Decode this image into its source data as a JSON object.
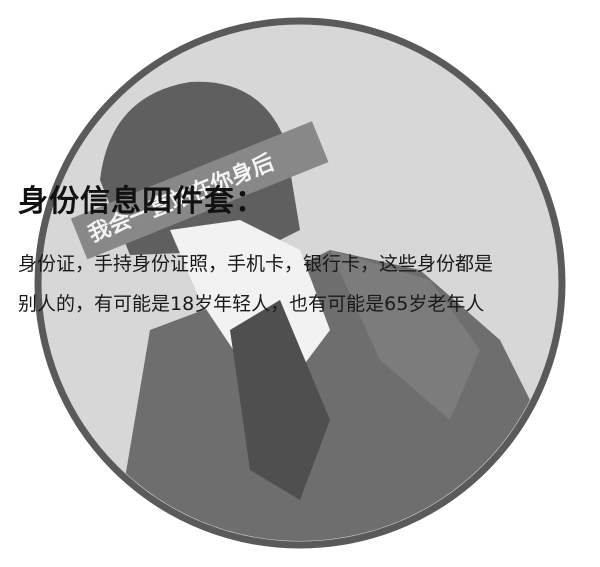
{
  "image": {
    "headline": "身份信息四件套：",
    "body_lines": [
      "身份证，手持身份证照，手机卡，银行卡，这些身份都是",
      "别人的，有可能是18岁年轻人，也有可能是65岁老年人"
    ],
    "banner_text": "我会一直站在你身后",
    "colors": {
      "circle_fill": "#d7d7d7",
      "circle_stroke": "#5a5a5a",
      "figure_dark": "#6e6e6e",
      "banner": "#888888",
      "text": "#111111"
    }
  }
}
